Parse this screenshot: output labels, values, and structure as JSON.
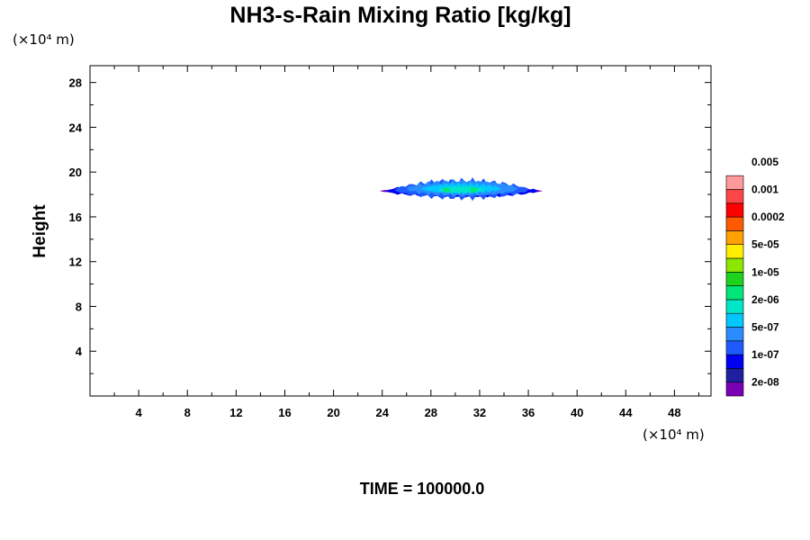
{
  "chart_data": {
    "type": "heatmap",
    "title": "NH3-s-Rain Mixing Ratio [kg/kg]",
    "ylabel": "Height",
    "y_unit": "(×10⁴ m)",
    "x_unit": "(×10⁴ m)",
    "xlim": [
      0,
      51
    ],
    "ylim": [
      0,
      29.5
    ],
    "x_ticks": [
      4,
      8,
      12,
      16,
      20,
      24,
      28,
      32,
      36,
      40,
      44,
      48
    ],
    "y_ticks": [
      4,
      8,
      12,
      16,
      20,
      24,
      28
    ],
    "time_label": "TIME = 100000.0",
    "colorbar": {
      "colors": [
        "#7a00b4",
        "#1f1fa0",
        "#0000f0",
        "#1e5aff",
        "#2a8cff",
        "#00c8ff",
        "#00e6c8",
        "#00e678",
        "#1ed21e",
        "#8ce600",
        "#ffee00",
        "#ffa000",
        "#ff5a00",
        "#ff0000",
        "#ff4646",
        "#ff9a9a"
      ],
      "labels": [
        "2e-08",
        "1e-07",
        "5e-07",
        "2e-06",
        "1e-05",
        "5e-05",
        "0.0002",
        "0.001",
        "0.005"
      ]
    },
    "field": {
      "description_units": "x and y in 10^4 m",
      "layers": [
        {
          "color": "#7a00b4",
          "x_range": [
            23.8,
            37.2
          ],
          "y_center": 18.3,
          "half_height": 0.35
        },
        {
          "color": "#0000f0",
          "x_range": [
            24.2,
            36.8
          ],
          "y_center": 18.3,
          "half_height": 0.6
        },
        {
          "color": "#1e5aff",
          "x_range": [
            25.0,
            36.0
          ],
          "y_center": 18.4,
          "half_height": 0.8
        },
        {
          "color": "#2a8cff",
          "x_range": [
            26.0,
            35.2
          ],
          "y_center": 18.5,
          "half_height": 0.7
        },
        {
          "color": "#00c8ff",
          "x_range": [
            27.2,
            33.8
          ],
          "y_center": 18.5,
          "half_height": 0.45
        },
        {
          "color": "#00e6c8",
          "x_range": [
            28.6,
            32.4
          ],
          "y_center": 18.4,
          "half_height": 0.3
        },
        {
          "color": "#00e678",
          "x_range": [
            29.0,
            29.6
          ],
          "y_center": 18.4,
          "half_height": 0.25
        },
        {
          "color": "#00e678",
          "x_range": [
            31.2,
            31.8
          ],
          "y_center": 18.4,
          "half_height": 0.25
        }
      ]
    }
  }
}
